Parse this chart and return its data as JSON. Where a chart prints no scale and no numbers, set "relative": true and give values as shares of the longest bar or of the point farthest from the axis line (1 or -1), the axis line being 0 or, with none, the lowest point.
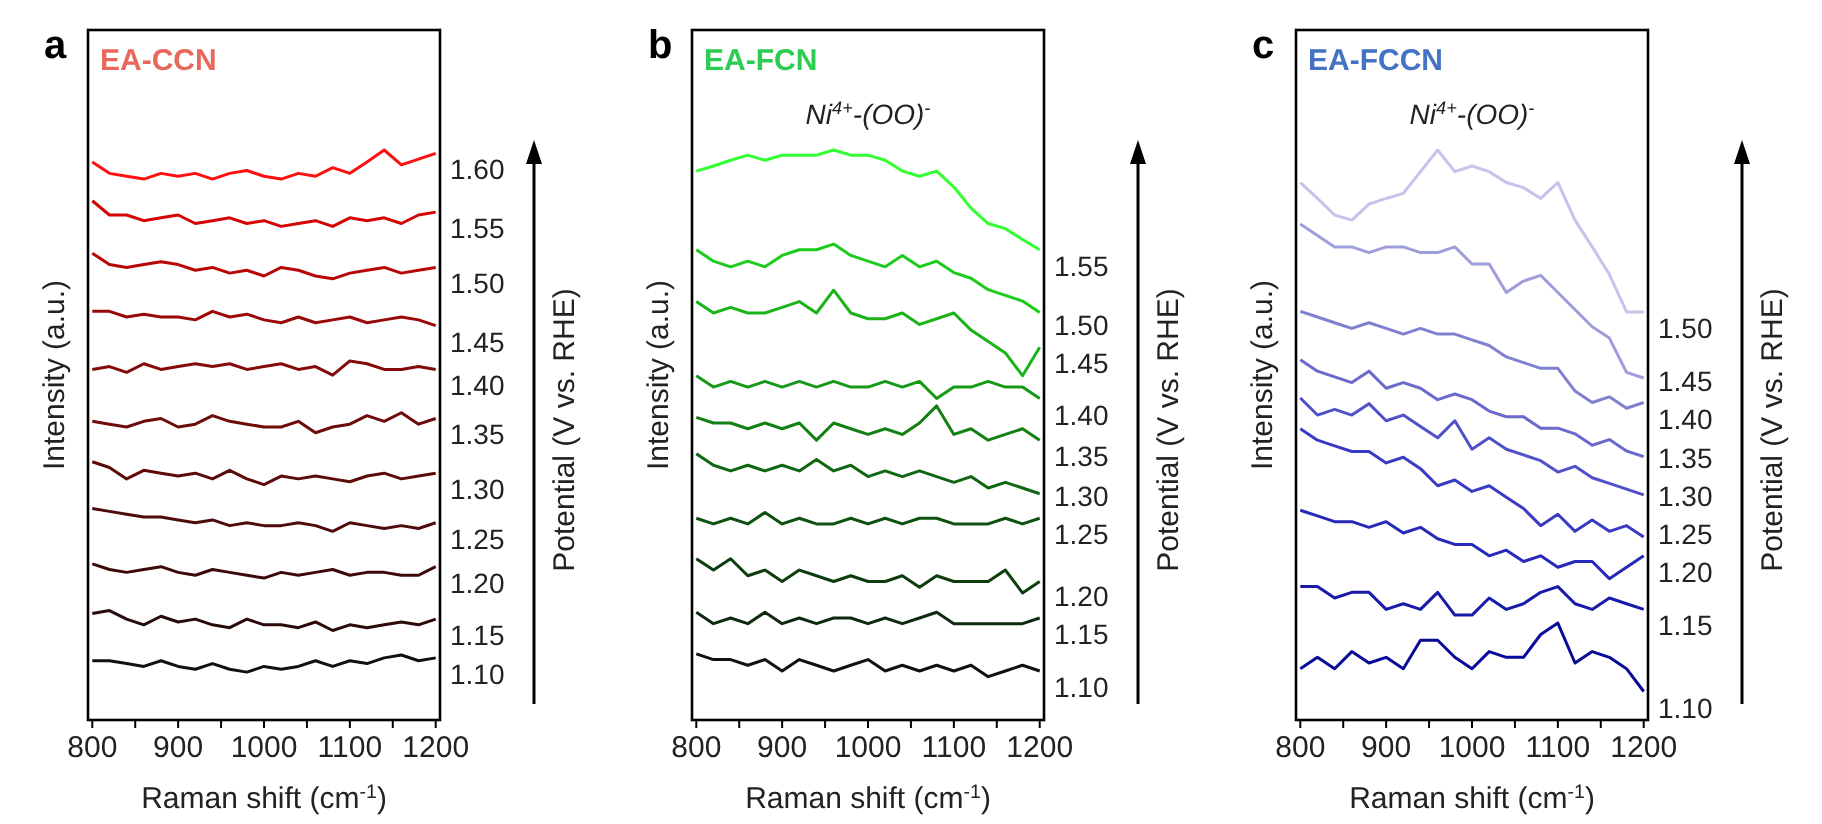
{
  "chart_data": [
    {
      "type": "line",
      "title": "a",
      "subtitle": "EA-CCN",
      "xlabel": "Raman shift (cm$^{-1}$)",
      "ylabel": "Intensity (a.u.)",
      "y2label": "Potential (V vs. RHE)",
      "relative": true,
      "x": [
        800,
        820,
        840,
        860,
        880,
        900,
        920,
        940,
        960,
        980,
        1000,
        1020,
        1040,
        1060,
        1080,
        1100,
        1120,
        1140,
        1160,
        1180,
        1200
      ],
      "xlim": [
        795,
        1205
      ],
      "xticks": [
        800,
        {
          "value": 850,
          "label": null
        },
        900,
        {
          "value": 950,
          "label": null
        },
        1000,
        {
          "value": 1050,
          "label": null
        },
        1100,
        {
          "value": 1150,
          "label": null
        },
        1200
      ],
      "series": [
        {
          "name": "1.10",
          "color": "#111111",
          "values": [
            0.104,
            0.104,
            0.099,
            0.094,
            0.104,
            0.094,
            0.089,
            0.099,
            0.089,
            0.084,
            0.094,
            0.089,
            0.094,
            0.104,
            0.094,
            0.104,
            0.099,
            0.109,
            0.114,
            0.104,
            0.109
          ]
        },
        {
          "name": "1.15",
          "color": "#2a0a0a",
          "values": [
            0.187,
            0.192,
            0.177,
            0.167,
            0.182,
            0.172,
            0.177,
            0.167,
            0.162,
            0.177,
            0.167,
            0.167,
            0.162,
            0.172,
            0.157,
            0.167,
            0.162,
            0.167,
            0.172,
            0.167,
            0.177
          ]
        },
        {
          "name": "1.20",
          "color": "#3d0808",
          "values": [
            0.274,
            0.264,
            0.259,
            0.264,
            0.269,
            0.259,
            0.254,
            0.264,
            0.259,
            0.254,
            0.249,
            0.259,
            0.254,
            0.259,
            0.264,
            0.254,
            0.259,
            0.259,
            0.254,
            0.254,
            0.269
          ]
        },
        {
          "name": "1.25",
          "color": "#4f0a0a",
          "values": [
            0.371,
            0.366,
            0.361,
            0.356,
            0.356,
            0.351,
            0.346,
            0.351,
            0.341,
            0.346,
            0.341,
            0.341,
            0.346,
            0.341,
            0.331,
            0.346,
            0.341,
            0.336,
            0.341,
            0.336,
            0.346
          ]
        },
        {
          "name": "1.30",
          "color": "#5c0a0a",
          "values": [
            0.453,
            0.443,
            0.423,
            0.438,
            0.433,
            0.428,
            0.433,
            0.423,
            0.438,
            0.423,
            0.413,
            0.428,
            0.423,
            0.428,
            0.423,
            0.418,
            0.428,
            0.433,
            0.423,
            0.428,
            0.433
          ]
        },
        {
          "name": "1.35",
          "color": "#6e0b0b",
          "values": [
            0.524,
            0.519,
            0.514,
            0.524,
            0.529,
            0.514,
            0.519,
            0.534,
            0.524,
            0.519,
            0.514,
            0.514,
            0.524,
            0.504,
            0.514,
            0.519,
            0.534,
            0.524,
            0.539,
            0.519,
            0.529
          ]
        },
        {
          "name": "1.40",
          "color": "#850a0a",
          "values": [
            0.615,
            0.62,
            0.61,
            0.625,
            0.615,
            0.62,
            0.625,
            0.62,
            0.625,
            0.615,
            0.62,
            0.625,
            0.615,
            0.62,
            0.605,
            0.63,
            0.625,
            0.615,
            0.615,
            0.62,
            0.615
          ]
        },
        {
          "name": "1.45",
          "color": "#9a0808",
          "values": [
            0.717,
            0.717,
            0.707,
            0.712,
            0.707,
            0.707,
            0.702,
            0.717,
            0.707,
            0.712,
            0.702,
            0.697,
            0.707,
            0.697,
            0.702,
            0.707,
            0.697,
            0.702,
            0.707,
            0.702,
            0.692
          ]
        },
        {
          "name": "1.50",
          "color": "#b80606",
          "values": [
            0.819,
            0.799,
            0.794,
            0.799,
            0.804,
            0.799,
            0.789,
            0.794,
            0.784,
            0.789,
            0.779,
            0.794,
            0.789,
            0.779,
            0.774,
            0.784,
            0.789,
            0.794,
            0.784,
            0.789,
            0.794
          ]
        },
        {
          "name": "1.55",
          "color": "#d40404",
          "values": [
            0.911,
            0.886,
            0.886,
            0.876,
            0.881,
            0.886,
            0.871,
            0.876,
            0.881,
            0.871,
            0.876,
            0.866,
            0.871,
            0.876,
            0.866,
            0.881,
            0.876,
            0.881,
            0.871,
            0.886,
            0.891
          ]
        },
        {
          "name": "1.60",
          "color": "#ff1010",
          "values": [
            0.979,
            0.959,
            0.954,
            0.949,
            0.959,
            0.954,
            0.959,
            0.949,
            0.959,
            0.964,
            0.954,
            0.949,
            0.959,
            0.954,
            0.969,
            0.959,
            0.979,
            1.0,
            0.974,
            0.984,
            0.994
          ]
        }
      ]
    },
    {
      "type": "line",
      "title": "b",
      "subtitle": "EA-FCN",
      "xlabel": "Raman shift (cm$^{-1}$)",
      "ylabel": "Intensity (a.u.)",
      "y2label": "Potential (V vs. RHE)",
      "relative": true,
      "annotations": [
        "Ni$^{4+}$-(OO)$^{-}$"
      ],
      "x": [
        800,
        820,
        840,
        860,
        880,
        900,
        920,
        940,
        960,
        980,
        1000,
        1020,
        1040,
        1060,
        1080,
        1100,
        1120,
        1140,
        1160,
        1180,
        1200
      ],
      "xlim": [
        795,
        1205
      ],
      "xticks": [
        800,
        {
          "value": 850,
          "label": null
        },
        900,
        {
          "value": 950,
          "label": null
        },
        1000,
        {
          "value": 1050,
          "label": null
        },
        1100,
        {
          "value": 1150,
          "label": null
        },
        1200
      ],
      "series": [
        {
          "name": "1.10",
          "color": "#111111",
          "values": [
            0.116,
            0.106,
            0.106,
            0.096,
            0.106,
            0.086,
            0.106,
            0.096,
            0.086,
            0.096,
            0.106,
            0.086,
            0.096,
            0.086,
            0.096,
            0.086,
            0.096,
            0.076,
            0.086,
            0.096,
            0.086
          ]
        },
        {
          "name": "1.15",
          "color": "#0f2a0f",
          "values": [
            0.189,
            0.169,
            0.179,
            0.169,
            0.189,
            0.169,
            0.179,
            0.169,
            0.179,
            0.179,
            0.169,
            0.179,
            0.169,
            0.179,
            0.189,
            0.169,
            0.169,
            0.169,
            0.169,
            0.169,
            0.179
          ]
        },
        {
          "name": "1.20",
          "color": "#0d3d0d",
          "values": [
            0.283,
            0.263,
            0.283,
            0.253,
            0.263,
            0.243,
            0.263,
            0.253,
            0.243,
            0.253,
            0.243,
            0.243,
            0.253,
            0.233,
            0.253,
            0.243,
            0.243,
            0.243,
            0.263,
            0.223,
            0.243
          ]
        },
        {
          "name": "1.25",
          "color": "#0f520f",
          "values": [
            0.354,
            0.344,
            0.354,
            0.344,
            0.364,
            0.344,
            0.354,
            0.344,
            0.344,
            0.354,
            0.344,
            0.354,
            0.344,
            0.354,
            0.354,
            0.344,
            0.344,
            0.344,
            0.354,
            0.344,
            0.354
          ]
        },
        {
          "name": "1.30",
          "color": "#116611",
          "values": [
            0.467,
            0.447,
            0.437,
            0.447,
            0.437,
            0.447,
            0.437,
            0.457,
            0.437,
            0.447,
            0.427,
            0.437,
            0.427,
            0.437,
            0.427,
            0.417,
            0.427,
            0.407,
            0.417,
            0.407,
            0.397
          ]
        },
        {
          "name": "1.35",
          "color": "#138013",
          "values": [
            0.531,
            0.521,
            0.521,
            0.511,
            0.521,
            0.511,
            0.521,
            0.491,
            0.521,
            0.511,
            0.501,
            0.511,
            0.501,
            0.521,
            0.551,
            0.501,
            0.511,
            0.491,
            0.501,
            0.511,
            0.491
          ]
        },
        {
          "name": "1.40",
          "color": "#169916",
          "values": [
            0.604,
            0.584,
            0.594,
            0.584,
            0.594,
            0.584,
            0.594,
            0.584,
            0.594,
            0.584,
            0.584,
            0.594,
            0.584,
            0.594,
            0.564,
            0.584,
            0.584,
            0.594,
            0.584,
            0.584,
            0.564
          ]
        },
        {
          "name": "1.45",
          "color": "#1ab31a",
          "values": [
            0.734,
            0.714,
            0.724,
            0.714,
            0.714,
            0.724,
            0.734,
            0.714,
            0.754,
            0.714,
            0.704,
            0.704,
            0.714,
            0.694,
            0.704,
            0.714,
            0.684,
            0.664,
            0.644,
            0.604,
            0.654
          ]
        },
        {
          "name": "1.50",
          "color": "#1ccc1c",
          "values": [
            0.825,
            0.805,
            0.795,
            0.805,
            0.795,
            0.815,
            0.825,
            0.825,
            0.835,
            0.815,
            0.805,
            0.795,
            0.815,
            0.795,
            0.805,
            0.785,
            0.775,
            0.755,
            0.745,
            0.735,
            0.715
          ]
        },
        {
          "name": "1.55",
          "color": "#33ff33",
          "values": [
            0.963,
            0.972,
            0.982,
            0.991,
            0.982,
            0.991,
            0.991,
            0.991,
            1.0,
            0.991,
            0.991,
            0.982,
            0.963,
            0.954,
            0.963,
            0.935,
            0.898,
            0.871,
            0.862,
            0.843,
            0.825
          ]
        }
      ]
    },
    {
      "type": "line",
      "title": "c",
      "subtitle": "EA-FCCN",
      "xlabel": "Raman shift (cm$^{-1}$)",
      "ylabel": "Intensity (a.u.)",
      "y2label": "Potential (V vs. RHE)",
      "relative": true,
      "annotations": [
        "Ni$^{4+}$-(OO)$^{-}$"
      ],
      "x": [
        800,
        820,
        840,
        860,
        880,
        900,
        920,
        940,
        960,
        980,
        1000,
        1020,
        1040,
        1060,
        1080,
        1100,
        1120,
        1140,
        1160,
        1180,
        1200
      ],
      "xlim": [
        795,
        1205
      ],
      "xticks": [
        800,
        {
          "value": 850,
          "label": null
        },
        900,
        {
          "value": 950,
          "label": null
        },
        1000,
        {
          "value": 1050,
          "label": null
        },
        1100,
        {
          "value": 1150,
          "label": null
        },
        1200
      ],
      "series": [
        {
          "name": "1.10",
          "color": "#0a0a99",
          "values": [
            0.09,
            0.11,
            0.09,
            0.12,
            0.1,
            0.11,
            0.09,
            0.14,
            0.14,
            0.11,
            0.09,
            0.12,
            0.11,
            0.11,
            0.15,
            0.17,
            0.1,
            0.12,
            0.11,
            0.09,
            0.05
          ]
        },
        {
          "name": "1.15",
          "color": "#1a1aaa",
          "values": [
            0.234,
            0.234,
            0.214,
            0.224,
            0.224,
            0.194,
            0.204,
            0.194,
            0.224,
            0.184,
            0.184,
            0.214,
            0.194,
            0.204,
            0.224,
            0.234,
            0.204,
            0.194,
            0.214,
            0.204,
            0.194
          ]
        },
        {
          "name": "1.20",
          "color": "#2828bb",
          "values": [
            0.368,
            0.358,
            0.348,
            0.348,
            0.338,
            0.348,
            0.328,
            0.338,
            0.318,
            0.308,
            0.308,
            0.288,
            0.298,
            0.278,
            0.288,
            0.268,
            0.278,
            0.278,
            0.248,
            0.268,
            0.288
          ]
        },
        {
          "name": "1.25",
          "color": "#3a3ac4",
          "values": [
            0.511,
            0.491,
            0.481,
            0.471,
            0.471,
            0.451,
            0.461,
            0.441,
            0.411,
            0.421,
            0.401,
            0.411,
            0.391,
            0.371,
            0.341,
            0.361,
            0.331,
            0.351,
            0.331,
            0.341,
            0.321
          ]
        },
        {
          "name": "1.30",
          "color": "#5050c8",
          "values": [
            0.565,
            0.535,
            0.545,
            0.535,
            0.555,
            0.525,
            0.535,
            0.515,
            0.495,
            0.525,
            0.475,
            0.495,
            0.475,
            0.465,
            0.455,
            0.435,
            0.445,
            0.425,
            0.415,
            0.405,
            0.395
          ]
        },
        {
          "name": "1.35",
          "color": "#6a6acc",
          "values": [
            0.632,
            0.612,
            0.602,
            0.592,
            0.612,
            0.582,
            0.592,
            0.582,
            0.562,
            0.572,
            0.562,
            0.542,
            0.532,
            0.532,
            0.512,
            0.512,
            0.502,
            0.482,
            0.492,
            0.472,
            0.462
          ]
        },
        {
          "name": "1.40",
          "color": "#8080d0",
          "values": [
            0.717,
            0.707,
            0.697,
            0.687,
            0.697,
            0.687,
            0.677,
            0.687,
            0.677,
            0.677,
            0.667,
            0.657,
            0.637,
            0.627,
            0.617,
            0.617,
            0.577,
            0.557,
            0.567,
            0.547,
            0.557
          ]
        },
        {
          "name": "1.45",
          "color": "#9e9edc",
          "values": [
            0.87,
            0.85,
            0.83,
            0.83,
            0.82,
            0.83,
            0.83,
            0.82,
            0.82,
            0.83,
            0.8,
            0.8,
            0.75,
            0.77,
            0.78,
            0.75,
            0.72,
            0.69,
            0.67,
            0.61,
            0.6
          ]
        },
        {
          "name": "1.50",
          "color": "#c4c4ea",
          "values": [
            0.943,
            0.915,
            0.886,
            0.877,
            0.905,
            0.915,
            0.924,
            0.962,
            1.0,
            0.962,
            0.972,
            0.962,
            0.943,
            0.934,
            0.915,
            0.943,
            0.877,
            0.83,
            0.782,
            0.716,
            0.716
          ]
        }
      ]
    }
  ]
}
